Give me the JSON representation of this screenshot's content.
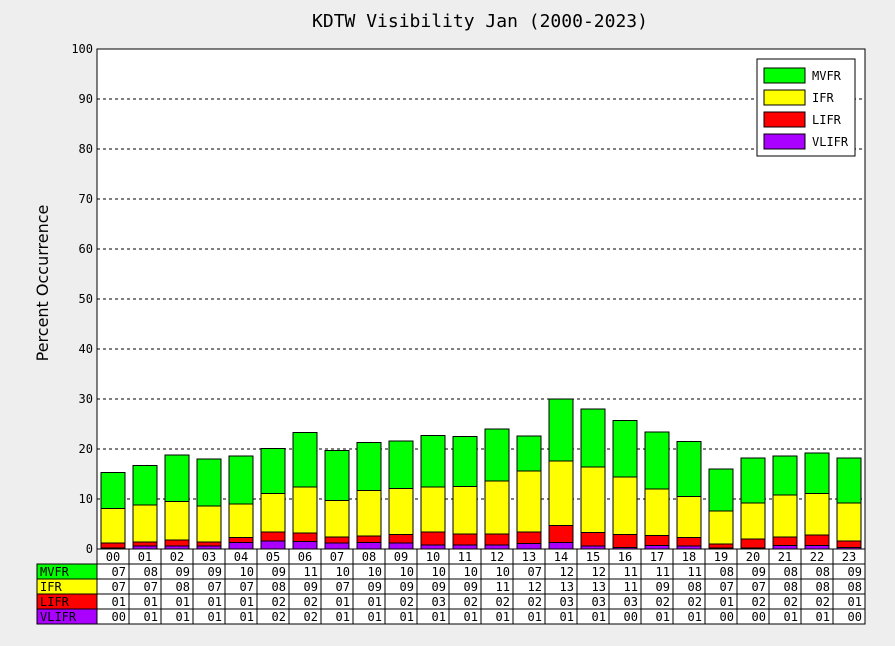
{
  "chart_data": {
    "type": "bar",
    "stacked": true,
    "title": "KDTW Visibility Jan (2000-2023)",
    "xlabel": "",
    "ylabel": "Percent Occurrence",
    "ylim": [
      0,
      100
    ],
    "yticks": [
      "0",
      "10",
      "20",
      "30",
      "40",
      "50",
      "60",
      "70",
      "80",
      "90",
      "100"
    ],
    "ygrid": true,
    "legend_position": "top-right",
    "categories": [
      "00",
      "01",
      "02",
      "03",
      "04",
      "05",
      "06",
      "07",
      "08",
      "09",
      "10",
      "11",
      "12",
      "13",
      "14",
      "15",
      "16",
      "17",
      "18",
      "19",
      "20",
      "21",
      "22",
      "23"
    ],
    "series": [
      {
        "name": "VLIFR",
        "color": "#aa00ff",
        "values": [
          0.2,
          0.6,
          0.6,
          0.6,
          1.3,
          1.6,
          1.5,
          1.2,
          1.3,
          1.2,
          0.8,
          0.8,
          0.8,
          1.1,
          1.3,
          0.6,
          0.3,
          0.7,
          0.6,
          0.2,
          0.2,
          0.7,
          0.7,
          0.3
        ]
      },
      {
        "name": "LIFR",
        "color": "#ff0000",
        "values": [
          1.0,
          0.8,
          1.2,
          0.8,
          1.0,
          1.8,
          1.7,
          1.2,
          1.3,
          1.7,
          2.6,
          2.2,
          2.2,
          2.3,
          3.4,
          2.7,
          2.6,
          2.0,
          1.7,
          0.8,
          1.8,
          1.7,
          2.1,
          1.3
        ]
      },
      {
        "name": "IFR",
        "color": "#ffff00",
        "values": [
          6.9,
          7.4,
          7.7,
          7.2,
          6.7,
          7.7,
          9.2,
          7.3,
          9.1,
          9.2,
          9.0,
          9.5,
          10.6,
          12.2,
          12.9,
          13.1,
          11.5,
          9.3,
          8.2,
          6.6,
          7.2,
          8.4,
          8.3,
          7.6
        ]
      },
      {
        "name": "MVFR",
        "color": "#00ff00",
        "values": [
          7.2,
          7.9,
          9.3,
          9.4,
          9.6,
          9.0,
          10.9,
          10.0,
          9.6,
          9.5,
          10.3,
          10.0,
          10.4,
          7.0,
          12.4,
          11.6,
          11.3,
          11.4,
          11.0,
          8.4,
          9.0,
          7.8,
          8.1,
          9.0
        ]
      }
    ],
    "table": {
      "order": [
        "MVFR",
        "IFR",
        "LIFR",
        "VLIFR"
      ],
      "rows": {
        "MVFR": [
          "07",
          "08",
          "09",
          "09",
          "10",
          "09",
          "11",
          "10",
          "10",
          "10",
          "10",
          "10",
          "10",
          "07",
          "12",
          "12",
          "11",
          "11",
          "11",
          "08",
          "09",
          "08",
          "08",
          "09"
        ],
        "IFR": [
          "07",
          "07",
          "08",
          "07",
          "07",
          "08",
          "09",
          "07",
          "09",
          "09",
          "09",
          "09",
          "11",
          "12",
          "13",
          "13",
          "11",
          "09",
          "08",
          "07",
          "07",
          "08",
          "08",
          "08"
        ],
        "LIFR": [
          "01",
          "01",
          "01",
          "01",
          "01",
          "02",
          "02",
          "01",
          "01",
          "02",
          "03",
          "02",
          "02",
          "02",
          "03",
          "03",
          "03",
          "02",
          "02",
          "01",
          "02",
          "02",
          "02",
          "01"
        ],
        "VLIFR": [
          "00",
          "01",
          "01",
          "01",
          "01",
          "02",
          "02",
          "01",
          "01",
          "01",
          "01",
          "01",
          "01",
          "01",
          "01",
          "01",
          "00",
          "01",
          "01",
          "00",
          "00",
          "01",
          "01",
          "00"
        ]
      }
    }
  }
}
